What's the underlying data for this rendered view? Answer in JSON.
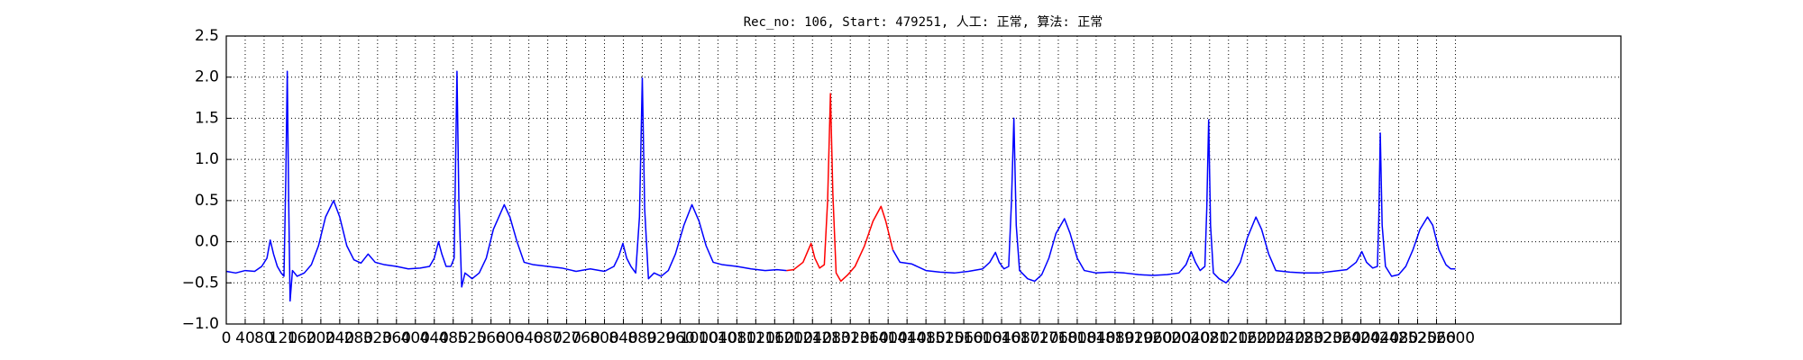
{
  "chart_data": {
    "type": "line",
    "title": "Rec_no: 106, Start: 479251, 人工: 正常, 算法: 正常",
    "x": [
      0,
      20,
      40,
      60,
      75,
      86,
      93,
      100,
      108,
      116,
      122,
      126,
      129,
      132,
      135,
      140,
      150,
      165,
      180,
      195,
      210,
      227,
      240,
      255,
      270,
      285,
      300,
      315,
      335,
      360,
      385,
      410,
      430,
      440,
      449,
      456,
      465,
      475,
      482,
      488,
      492,
      498,
      505,
      520,
      535,
      550,
      565,
      588,
      600,
      615,
      630,
      650,
      680,
      710,
      740,
      770,
      800,
      820,
      830,
      839,
      847,
      856,
      866,
      874,
      880,
      885,
      893,
      905,
      920,
      935,
      950,
      968,
      985,
      1000,
      1015,
      1030,
      1050,
      1080,
      1110,
      1140,
      1165,
      1185,
      1200,
      1220,
      1237,
      1245,
      1255,
      1265,
      1272,
      1278,
      1283,
      1290,
      1300,
      1315,
      1330,
      1350,
      1368,
      1385,
      1395,
      1410,
      1425,
      1450,
      1480,
      1510,
      1540,
      1570,
      1600,
      1615,
      1627,
      1635,
      1645,
      1655,
      1661,
      1666,
      1671,
      1678,
      1695,
      1710,
      1725,
      1740,
      1755,
      1773,
      1785,
      1800,
      1815,
      1840,
      1870,
      1900,
      1930,
      1960,
      1990,
      2015,
      2030,
      2041,
      2050,
      2060,
      2070,
      2074,
      2078,
      2082,
      2088,
      2100,
      2115,
      2130,
      2145,
      2160,
      2178,
      2190,
      2205,
      2220,
      2250,
      2280,
      2310,
      2340,
      2370,
      2390,
      2402,
      2412,
      2425,
      2435,
      2438,
      2441,
      2445,
      2452,
      2465,
      2480,
      2495,
      2510,
      2525,
      2541,
      2552,
      2565,
      2580,
      2590,
      2600
    ],
    "series": [
      {
        "color": "#0000ff",
        "values": [
          -0.36,
          -0.38,
          -0.35,
          -0.36,
          -0.3,
          -0.2,
          0.02,
          -0.15,
          -0.3,
          -0.38,
          -0.42,
          0.8,
          2.07,
          0.5,
          -0.72,
          -0.35,
          -0.42,
          -0.38,
          -0.28,
          -0.05,
          0.3,
          0.5,
          0.3,
          -0.05,
          -0.22,
          -0.26,
          -0.15,
          -0.25,
          -0.28,
          -0.3,
          -0.33,
          -0.32,
          -0.3,
          -0.2,
          0.0,
          -0.15,
          -0.3,
          -0.3,
          -0.2,
          2.07,
          0.5,
          -0.55,
          -0.38,
          -0.45,
          -0.38,
          -0.2,
          0.15,
          0.45,
          0.3,
          0.0,
          -0.25,
          -0.28,
          -0.3,
          -0.32,
          -0.36,
          -0.33,
          -0.36,
          -0.3,
          -0.18,
          -0.02,
          -0.2,
          -0.3,
          -0.38,
          0.3,
          1.99,
          0.4,
          -0.45,
          -0.38,
          -0.42,
          -0.35,
          -0.15,
          0.2,
          0.45,
          0.25,
          -0.05,
          -0.25,
          -0.28,
          -0.3,
          -0.33,
          -0.35,
          -0.34,
          -0.35,
          null,
          null,
          null,
          null,
          null,
          null,
          null,
          null,
          null,
          null,
          null,
          null,
          null,
          null,
          null,
          null,
          null,
          -0.1,
          -0.25,
          -0.27,
          -0.35,
          -0.37,
          -0.38,
          -0.36,
          -0.33,
          -0.25,
          -0.13,
          -0.25,
          -0.33,
          -0.3,
          0.5,
          1.5,
          0.2,
          -0.35,
          -0.45,
          -0.48,
          -0.4,
          -0.2,
          0.1,
          0.28,
          0.1,
          -0.2,
          -0.35,
          -0.38,
          -0.37,
          -0.38,
          -0.4,
          -0.41,
          -0.4,
          -0.38,
          -0.28,
          -0.12,
          -0.25,
          -0.35,
          -0.3,
          0.4,
          1.48,
          0.2,
          -0.38,
          -0.45,
          -0.5,
          -0.4,
          -0.25,
          0.05,
          0.3,
          0.15,
          -0.15,
          -0.35,
          -0.37,
          -0.38,
          -0.38,
          -0.36,
          -0.34,
          -0.25,
          -0.12,
          -0.25,
          -0.32,
          -0.3,
          0.3,
          1.32,
          0.2,
          -0.3,
          -0.42,
          -0.4,
          -0.3,
          -0.1,
          0.15,
          0.3,
          0.2,
          -0.1,
          -0.28,
          -0.33,
          -0.33
        ]
      },
      {
        "color": "#ff0000",
        "values": [
          null,
          null,
          null,
          null,
          null,
          null,
          null,
          null,
          null,
          null,
          null,
          null,
          null,
          null,
          null,
          null,
          null,
          null,
          null,
          null,
          null,
          null,
          null,
          null,
          null,
          null,
          null,
          null,
          null,
          null,
          null,
          null,
          null,
          null,
          null,
          null,
          null,
          null,
          null,
          null,
          null,
          null,
          null,
          null,
          null,
          null,
          null,
          null,
          null,
          null,
          null,
          null,
          null,
          null,
          null,
          null,
          null,
          null,
          null,
          null,
          null,
          null,
          null,
          null,
          null,
          null,
          null,
          null,
          null,
          null,
          null,
          null,
          null,
          null,
          null,
          null,
          null,
          null,
          null,
          null,
          null,
          -0.35,
          -0.34,
          -0.25,
          -0.02,
          -0.2,
          -0.32,
          -0.28,
          0.5,
          1.8,
          0.6,
          -0.38,
          -0.48,
          -0.4,
          -0.3,
          -0.05,
          0.25,
          0.43,
          0.25,
          -0.1,
          null,
          null,
          null,
          null,
          null,
          null,
          null,
          null,
          null,
          null,
          null,
          null,
          null,
          null,
          null,
          null,
          null,
          null,
          null,
          null,
          null,
          null,
          null,
          null,
          null,
          null,
          null,
          null,
          null,
          null,
          null,
          null,
          null,
          null,
          null,
          null,
          null,
          null,
          null,
          null,
          null,
          null,
          null,
          null,
          null,
          null,
          null,
          null,
          null,
          null,
          null,
          null,
          null,
          null,
          null,
          null,
          null,
          null,
          null,
          null,
          null,
          null,
          null,
          null,
          null,
          null,
          null,
          null,
          null,
          null,
          null,
          null,
          null,
          null,
          null
        ]
      }
    ],
    "xlim": [
      0,
      2950
    ],
    "xticks": [
      0,
      40,
      80,
      120,
      160,
      200,
      240,
      280,
      320,
      360,
      400,
      440,
      480,
      520,
      560,
      600,
      640,
      680,
      720,
      760,
      800,
      840,
      880,
      920,
      960,
      1000,
      1040,
      1080,
      1120,
      1160,
      1200,
      1240,
      1280,
      1320,
      1360,
      1400,
      1440,
      1480,
      1520,
      1560,
      1600,
      1640,
      1680,
      1720,
      1760,
      1800,
      1840,
      1880,
      1920,
      1960,
      2000,
      2040,
      2080,
      2120,
      2160,
      2200,
      2240,
      2280,
      2320,
      2360,
      2400,
      2440,
      2480,
      2520,
      2560,
      2600
    ],
    "ylim": [
      -1.0,
      2.5
    ],
    "yticks": [
      {
        "value": -1.0,
        "label": "−1.0"
      },
      {
        "value": -0.5,
        "label": "−0.5"
      },
      {
        "value": 0.0,
        "label": "0.0"
      },
      0.5,
      {
        "value": 1.0,
        "label": "1.0"
      },
      1.5,
      {
        "value": 2.0,
        "label": "2.0"
      },
      2.5
    ],
    "grid": true
  }
}
